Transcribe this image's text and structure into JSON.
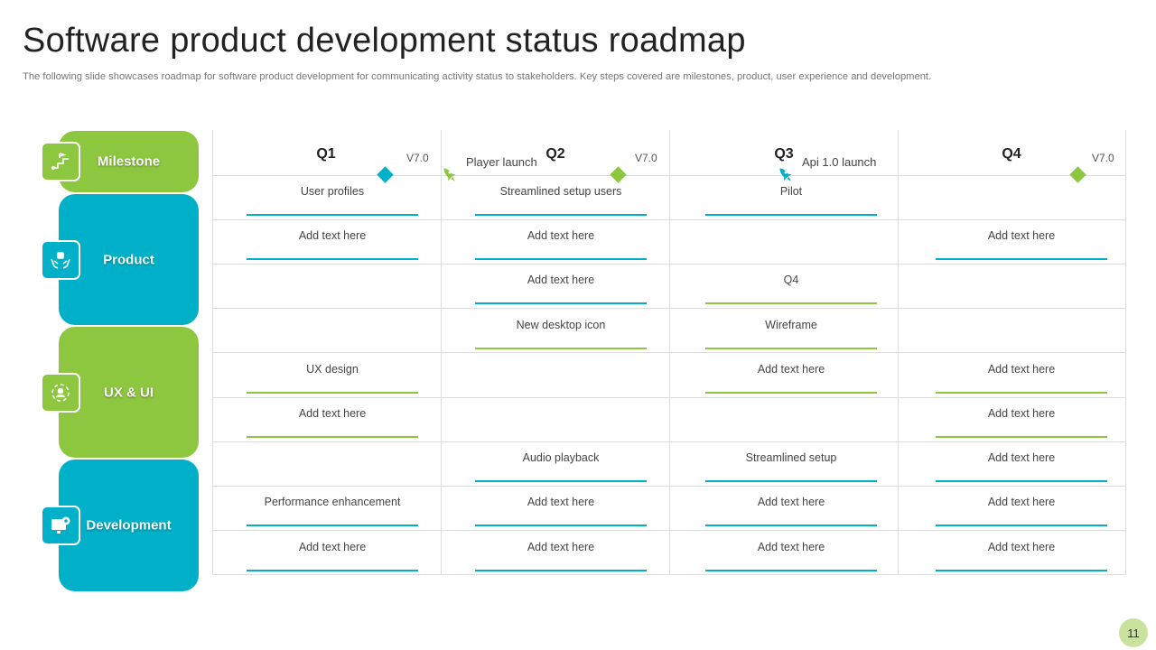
{
  "title": "Software product development status roadmap",
  "subtitle": "The following slide showcases roadmap for software product development for communicating activity status to stakeholders. Key steps covered are milestones, product, user experience and development.",
  "colors": {
    "green": "#8dc63f",
    "teal": "#00b0c8",
    "grid": "#dcdcdc"
  },
  "quarters": [
    "Q1",
    "Q2",
    "Q3",
    "Q4"
  ],
  "version_labels": [
    "V7.0",
    "V7.0",
    "V7.0"
  ],
  "launches": {
    "q1": "Player launch",
    "q3": "Api 1.0 launch"
  },
  "categories": {
    "milestone": "Milestone",
    "product": "Product",
    "ux": "UX & UI",
    "development": "Development"
  },
  "rows": [
    [
      "User profiles",
      "Streamlined setup users",
      "Pilot",
      ""
    ],
    [
      "Add text here",
      "Add text here",
      "",
      "Add text here"
    ],
    [
      "",
      "Add text here",
      "Q4",
      ""
    ],
    [
      "",
      "New desktop icon",
      "Wireframe",
      ""
    ],
    [
      "UX design",
      "",
      "Add text here",
      "Add text here"
    ],
    [
      "Add text here",
      "",
      "",
      "Add text here"
    ],
    [
      "",
      "Audio playback",
      "Streamlined setup",
      "Add text here"
    ],
    [
      "Performance  enhancement",
      "Add text here",
      "Add text here",
      "Add text here"
    ],
    [
      "Add text here",
      "Add text here",
      "Add text here",
      "Add text here"
    ]
  ],
  "page_number": "11"
}
